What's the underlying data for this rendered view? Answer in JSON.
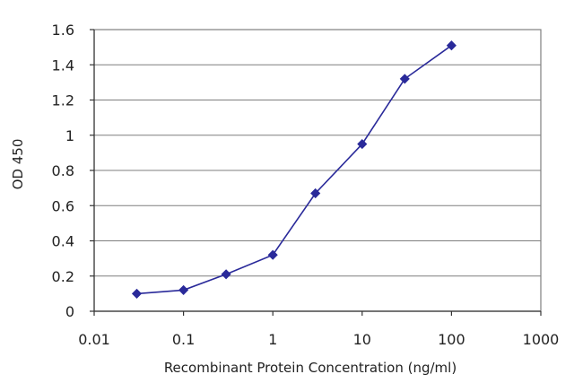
{
  "chart_data": {
    "type": "line",
    "title": "",
    "xlabel": "Recombinant Protein Concentration (ng/ml)",
    "ylabel": "OD 450",
    "x_scale": "log",
    "xlim": [
      0.01,
      1000
    ],
    "ylim": [
      0,
      1.6
    ],
    "x_ticks": [
      "0.01",
      "0.1",
      "1",
      "10",
      "100",
      "1000"
    ],
    "y_ticks": [
      "0",
      "0.2",
      "0.4",
      "0.6",
      "0.8",
      "1",
      "1.2",
      "1.4",
      "1.6"
    ],
    "grid": "horizontal",
    "series": [
      {
        "color": "#2a2a9a",
        "marker": "diamond",
        "x": [
          0.03,
          0.1,
          0.3,
          1,
          3,
          10,
          30,
          100
        ],
        "y": [
          0.1,
          0.12,
          0.21,
          0.32,
          0.67,
          0.95,
          1.32,
          1.51
        ]
      }
    ]
  }
}
